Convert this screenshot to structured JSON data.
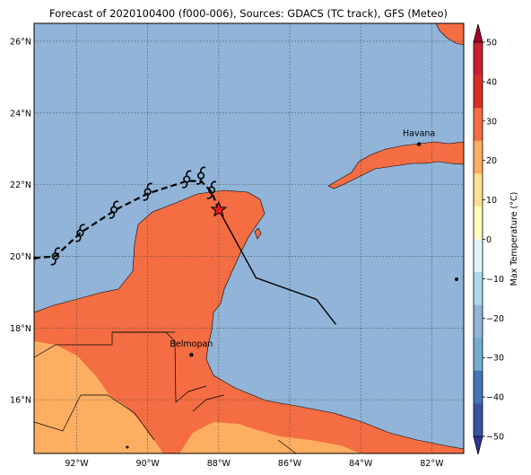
{
  "title": "Forecast of 2020100400 (f000-006), Sources: GDACS (TC track), GFS (Meteo)",
  "map": {
    "lon_range": [
      -93.2,
      -81.1
    ],
    "lat_range": [
      14.5,
      26.5
    ],
    "lon_ticks": [
      {
        "value": -92,
        "label": "92°W"
      },
      {
        "value": -90,
        "label": "90°W"
      },
      {
        "value": -88,
        "label": "88°W"
      },
      {
        "value": -86,
        "label": "86°W"
      },
      {
        "value": -84,
        "label": "84°W"
      },
      {
        "value": -82,
        "label": "82°W"
      }
    ],
    "lat_ticks": [
      {
        "value": 16,
        "label": "16°N"
      },
      {
        "value": 18,
        "label": "18°N"
      },
      {
        "value": 20,
        "label": "20°N"
      },
      {
        "value": 22,
        "label": "22°N"
      },
      {
        "value": 24,
        "label": "24°N"
      },
      {
        "value": 26,
        "label": "26°N"
      }
    ],
    "grid": true,
    "colors": {
      "ocean": "#91b4d8",
      "land_warm": "#f46d43",
      "land_mild": "#fdae61",
      "border": "#000000"
    },
    "cities": [
      {
        "name": "Havana",
        "lon": -82.36,
        "lat": 23.13
      },
      {
        "name": "Belmopan",
        "lon": -88.77,
        "lat": 17.25
      }
    ],
    "current_position": {
      "lon": -88.0,
      "lat": 21.3,
      "marker": "red-star"
    },
    "past_track": [
      {
        "lon": -93.2,
        "lat": 19.95
      },
      {
        "lon": -92.6,
        "lat": 20.0
      },
      {
        "lon": -91.9,
        "lat": 20.65
      },
      {
        "lon": -90.9,
        "lat": 21.3
      },
      {
        "lon": -90.0,
        "lat": 21.75
      },
      {
        "lon": -88.9,
        "lat": 22.1
      },
      {
        "lon": -88.5,
        "lat": 22.1
      },
      {
        "lon": -88.2,
        "lat": 21.8
      },
      {
        "lon": -88.0,
        "lat": 21.3
      }
    ],
    "storm_symbols": [
      {
        "lon": -92.6,
        "lat": 20.0
      },
      {
        "lon": -91.9,
        "lat": 20.65
      },
      {
        "lon": -90.95,
        "lat": 21.3
      },
      {
        "lon": -90.0,
        "lat": 21.8
      },
      {
        "lon": -88.9,
        "lat": 22.15
      },
      {
        "lon": -88.5,
        "lat": 22.25
      },
      {
        "lon": -88.2,
        "lat": 21.85
      }
    ],
    "forecast_track": [
      {
        "lon": -88.0,
        "lat": 21.3
      },
      {
        "lon": -86.95,
        "lat": 19.4
      },
      {
        "lon": -85.25,
        "lat": 18.8
      },
      {
        "lon": -84.7,
        "lat": 18.1
      }
    ]
  },
  "colorbar": {
    "label": "Max Temperature (°C)",
    "ticks": [
      "50",
      "40",
      "30",
      "20",
      "10",
      "0",
      "−10",
      "−20",
      "−30",
      "−40",
      "−50"
    ],
    "band_colors_top_to_bottom": [
      "#a50026",
      "#c8202f",
      "#d73027",
      "#f46d43",
      "#fdae61",
      "#fee090",
      "#ffffbf",
      "#e0f3f8",
      "#abd9e9",
      "#91b4d8",
      "#74add1",
      "#4575b4",
      "#3953a4",
      "#313695"
    ]
  }
}
